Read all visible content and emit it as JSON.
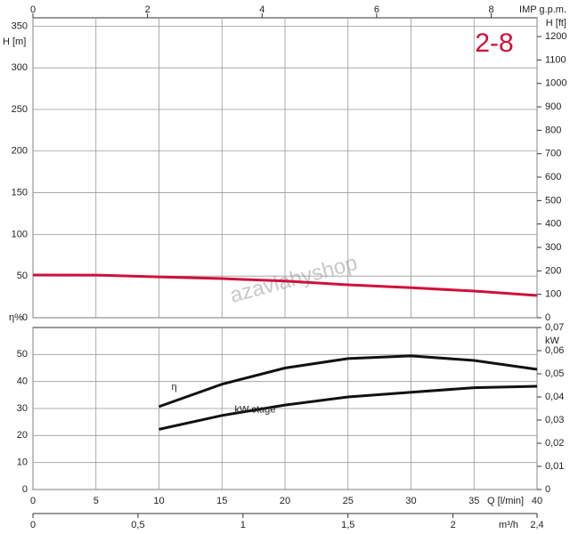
{
  "chart_data": [
    {
      "type": "line",
      "title": "2-8",
      "watermark": "azavlahyshop",
      "ylabel": "H [m]",
      "y2label": "H [ft]",
      "x2label": "IMP g.p.m.",
      "x": [
        0,
        5,
        10,
        15,
        20,
        25,
        30,
        35,
        40
      ],
      "xlim": [
        0,
        40
      ],
      "ylim": [
        0,
        360
      ],
      "yticks": [
        0,
        50,
        100,
        150,
        200,
        250,
        300,
        350
      ],
      "y2lim": [
        0,
        1280
      ],
      "y2ticks": [
        0,
        100,
        200,
        300,
        400,
        500,
        600,
        700,
        800,
        900,
        1000,
        1100,
        1200
      ],
      "x2lim": [
        0,
        8.8
      ],
      "x2ticks": [
        0,
        2,
        4,
        6,
        8
      ],
      "grid": true,
      "series": [
        {
          "color": "#d0103a",
          "values": [
            51.3,
            51.2,
            49,
            47,
            44,
            39.5,
            36,
            32,
            26.7
          ]
        }
      ]
    },
    {
      "type": "line",
      "ylabel": "η%",
      "y2label": "kW",
      "xlabel": "Q [l/min]",
      "x2label": "m³/h",
      "x": [
        10,
        15,
        20,
        25,
        30,
        35,
        40
      ],
      "xlim": [
        0,
        40
      ],
      "xticks": [
        0,
        5,
        10,
        15,
        20,
        25,
        30,
        35,
        40
      ],
      "ylim": [
        0,
        60
      ],
      "yticks": [
        0,
        10,
        20,
        30,
        40,
        50
      ],
      "y2lim": [
        0,
        0.07
      ],
      "y2ticks": [
        0,
        {
          "value": 0.01,
          "label": "0,01"
        },
        {
          "value": 0.02,
          "label": "0,02"
        },
        {
          "value": 0.03,
          "label": "0,03"
        },
        {
          "value": 0.04,
          "label": "0,04"
        },
        {
          "value": 0.05,
          "label": "0,05"
        },
        {
          "value": 0.06,
          "label": "0,06"
        },
        {
          "value": 0.07,
          "label": "0,07"
        }
      ],
      "x2lim": [
        0,
        2.4
      ],
      "x2ticks": [
        0,
        {
          "value": 0.5,
          "label": "0,5"
        },
        1,
        {
          "value": 1.5,
          "label": "1,5"
        },
        2,
        {
          "value": 2.4,
          "label": "2,4"
        }
      ],
      "grid": true,
      "series": [
        {
          "name": "η",
          "color": "#111111",
          "values": [
            30.7,
            39,
            45,
            48.5,
            49.5,
            47.8,
            44.5
          ]
        },
        {
          "name": "kW stage",
          "color": "#111111",
          "axis": "y2",
          "values": [
            0.026,
            0.032,
            0.0365,
            0.04,
            0.042,
            0.044,
            0.0446
          ]
        }
      ]
    }
  ]
}
